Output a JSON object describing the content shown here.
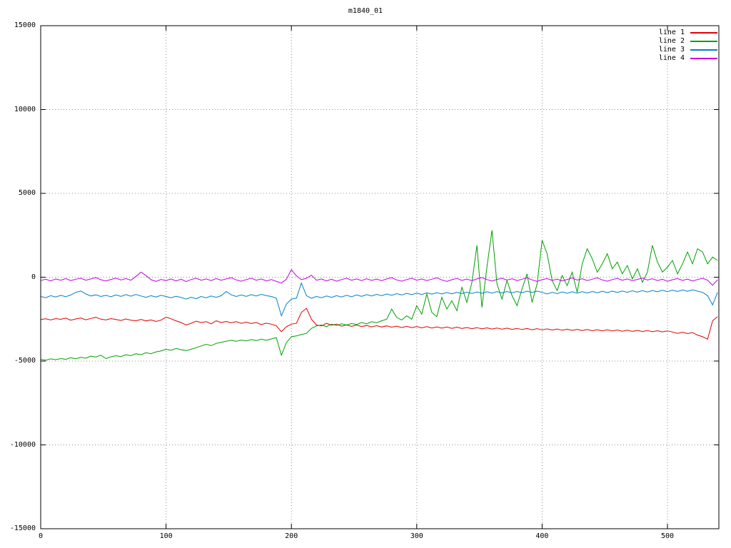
{
  "title": "m1840_01",
  "chart_data": {
    "type": "line",
    "title": "m1840_01",
    "xlabel": "",
    "ylabel": "",
    "xlim": [
      0,
      541
    ],
    "ylim": [
      -15000,
      15000
    ],
    "x_ticks": [
      0,
      100,
      200,
      300,
      400,
      500
    ],
    "y_ticks": [
      -15000,
      -10000,
      -5000,
      0,
      5000,
      10000,
      15000
    ],
    "grid": "dotted",
    "legend_position": "top-right",
    "x_start": 0,
    "x_step": 4,
    "series": [
      {
        "name": "line 1",
        "color": "#e00000",
        "values": [
          -2520,
          -2480,
          -2550,
          -2470,
          -2510,
          -2440,
          -2560,
          -2490,
          -2430,
          -2540,
          -2460,
          -2390,
          -2500,
          -2550,
          -2470,
          -2520,
          -2580,
          -2490,
          -2560,
          -2600,
          -2520,
          -2610,
          -2550,
          -2640,
          -2560,
          -2380,
          -2480,
          -2600,
          -2700,
          -2850,
          -2750,
          -2620,
          -2700,
          -2650,
          -2780,
          -2600,
          -2700,
          -2640,
          -2720,
          -2650,
          -2750,
          -2680,
          -2760,
          -2700,
          -2820,
          -2740,
          -2800,
          -2900,
          -3250,
          -2950,
          -2800,
          -2750,
          -2100,
          -1850,
          -2500,
          -2850,
          -2900,
          -2750,
          -2870,
          -2800,
          -2920,
          -2850,
          -2930,
          -2860,
          -2940,
          -2880,
          -2960,
          -2890,
          -2970,
          -2900,
          -2980,
          -2920,
          -3000,
          -2930,
          -3010,
          -2940,
          -3020,
          -2950,
          -3030,
          -2960,
          -3040,
          -2970,
          -3050,
          -2980,
          -3060,
          -3000,
          -3070,
          -3010,
          -3080,
          -3020,
          -3090,
          -3030,
          -3100,
          -3040,
          -3110,
          -3050,
          -3120,
          -3060,
          -3130,
          -3070,
          -3140,
          -3080,
          -3150,
          -3090,
          -3160,
          -3100,
          -3170,
          -3110,
          -3180,
          -3120,
          -3190,
          -3130,
          -3200,
          -3140,
          -3210,
          -3150,
          -3220,
          -3160,
          -3230,
          -3170,
          -3240,
          -3180,
          -3250,
          -3190,
          -3260,
          -3200,
          -3270,
          -3350,
          -3280,
          -3360,
          -3300,
          -3450,
          -3550,
          -3700,
          -2600,
          -2350
        ]
      },
      {
        "name": "line 2",
        "color": "#00a000",
        "values": [
          -4900,
          -4950,
          -4870,
          -4920,
          -4850,
          -4900,
          -4800,
          -4860,
          -4780,
          -4830,
          -4700,
          -4760,
          -4650,
          -4850,
          -4750,
          -4680,
          -4730,
          -4620,
          -4680,
          -4560,
          -4620,
          -4500,
          -4560,
          -4450,
          -4400,
          -4300,
          -4360,
          -4250,
          -4320,
          -4380,
          -4300,
          -4200,
          -4100,
          -4000,
          -4080,
          -3950,
          -3880,
          -3820,
          -3760,
          -3820,
          -3750,
          -3800,
          -3720,
          -3780,
          -3700,
          -3760,
          -3680,
          -3600,
          -4650,
          -3900,
          -3550,
          -3500,
          -3420,
          -3350,
          -3050,
          -2900,
          -2850,
          -2950,
          -2800,
          -2880,
          -2780,
          -2850,
          -2760,
          -2820,
          -2700,
          -2780,
          -2650,
          -2720,
          -2600,
          -2500,
          -1900,
          -2400,
          -2550,
          -2300,
          -2500,
          -1700,
          -2200,
          -1000,
          -2100,
          -2350,
          -1200,
          -1900,
          -1400,
          -2000,
          -600,
          -1500,
          -300,
          1900,
          -1800,
          600,
          2800,
          -400,
          -1300,
          -200,
          -1100,
          -1700,
          -700,
          200,
          -1500,
          -400,
          2200,
          1400,
          -200,
          -800,
          100,
          -500,
          300,
          -900,
          800,
          1700,
          1100,
          300,
          800,
          1400,
          500,
          900,
          200,
          700,
          -100,
          500,
          -300,
          300,
          1900,
          900,
          300,
          600,
          1000,
          200,
          800,
          1500,
          800,
          1700,
          1500,
          800,
          1200,
          1000
        ]
      },
      {
        "name": "line 3",
        "color": "#0080c8",
        "values": [
          -1150,
          -1220,
          -1100,
          -1180,
          -1080,
          -1160,
          -1060,
          -900,
          -820,
          -1000,
          -1120,
          -1050,
          -1150,
          -1080,
          -1160,
          -1060,
          -1140,
          -1040,
          -1130,
          -1030,
          -1120,
          -1200,
          -1100,
          -1180,
          -1080,
          -1150,
          -1230,
          -1130,
          -1210,
          -1300,
          -1200,
          -1280,
          -1150,
          -1230,
          -1120,
          -1200,
          -1100,
          -850,
          -1050,
          -1150,
          -1060,
          -1140,
          -1040,
          -1120,
          -1020,
          -1100,
          -1150,
          -1250,
          -2300,
          -1600,
          -1300,
          -1250,
          -350,
          -1100,
          -1250,
          -1150,
          -1220,
          -1120,
          -1200,
          -1100,
          -1180,
          -1080,
          -1160,
          -1060,
          -1140,
          -1040,
          -1120,
          -1020,
          -1100,
          -1000,
          -1080,
          -980,
          -1060,
          -960,
          -1040,
          -950,
          -1030,
          -930,
          -1010,
          -920,
          -1000,
          -910,
          -990,
          -900,
          -980,
          -890,
          -970,
          -880,
          -960,
          -870,
          -950,
          -860,
          -940,
          -850,
          -930,
          -850,
          -920,
          -840,
          -910,
          -830,
          -900,
          -1000,
          -900,
          -980,
          -880,
          -960,
          -870,
          -950,
          -860,
          -940,
          -850,
          -930,
          -840,
          -920,
          -830,
          -910,
          -820,
          -900,
          -810,
          -890,
          -800,
          -880,
          -790,
          -870,
          -780,
          -860,
          -770,
          -850,
          -760,
          -840,
          -750,
          -830,
          -900,
          -1100,
          -1650,
          -900
        ]
      },
      {
        "name": "line 4",
        "color": "#c000e0",
        "values": [
          -200,
          -120,
          -220,
          -100,
          -180,
          -80,
          -200,
          -120,
          -60,
          -180,
          -100,
          -20,
          -150,
          -230,
          -130,
          -60,
          -160,
          -80,
          -180,
          50,
          300,
          100,
          -150,
          -250,
          -130,
          -200,
          -100,
          -220,
          -120,
          -260,
          -140,
          -60,
          -180,
          -100,
          -200,
          -80,
          -180,
          -100,
          -30,
          -160,
          -240,
          -140,
          -60,
          -180,
          -100,
          -220,
          -140,
          -250,
          -350,
          -120,
          450,
          80,
          -150,
          -60,
          120,
          -180,
          -100,
          -220,
          -120,
          -240,
          -140,
          -60,
          -180,
          -100,
          -200,
          -90,
          -190,
          -110,
          -210,
          -100,
          -30,
          -160,
          -240,
          -140,
          -60,
          -180,
          -100,
          -200,
          -120,
          -40,
          -160,
          -250,
          -150,
          -70,
          -190,
          -110,
          -210,
          -100,
          -20,
          -140,
          -230,
          -130,
          -60,
          -170,
          -90,
          -200,
          -120,
          -40,
          -160,
          -250,
          -150,
          -80,
          -190,
          -110,
          -220,
          -130,
          -50,
          -170,
          -90,
          -200,
          -120,
          -40,
          -160,
          -240,
          -140,
          -70,
          -180,
          -100,
          -210,
          -130,
          -50,
          -170,
          -90,
          -200,
          -120,
          -250,
          -150,
          -80,
          -190,
          -110,
          -230,
          -140,
          -60,
          -180,
          -480,
          -150
        ]
      }
    ]
  }
}
